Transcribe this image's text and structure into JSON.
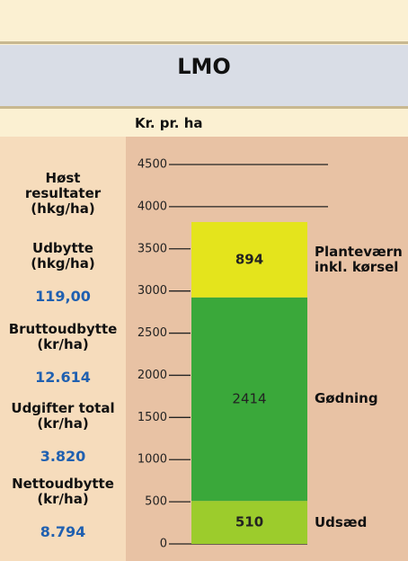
{
  "chart_data": {
    "type": "bar",
    "title": "LMO",
    "y_axis_label": "Kr. pr. ha",
    "categories": [
      null
    ],
    "series": [
      {
        "name": "Udsæd",
        "color": "#9ccc2c",
        "values": [
          510
        ]
      },
      {
        "name": "Gødning",
        "color": "#3aa83a",
        "values": [
          2414
        ]
      },
      {
        "name": "Planteværn inkl. kørsel",
        "color": "#e4e41c",
        "values": [
          894
        ]
      }
    ],
    "ylim": [
      0,
      4500
    ],
    "yticks": [
      0,
      500,
      1000,
      1500,
      2000,
      2500,
      3000,
      3500,
      4000,
      4500
    ]
  },
  "sidebar": {
    "heading": "Høst\nresultater\n(hkg/ha)",
    "items": [
      {
        "label": "Udbytte\n(hkg/ha)",
        "value": "119,00"
      },
      {
        "label": "Bruttoudbytte\n(kr/ha)",
        "value": "12.614"
      },
      {
        "label": "Udgifter total\n(kr/ha)",
        "value": "3.820"
      },
      {
        "label": "Nettoudbytte\n(kr/ha)",
        "value": "8.794"
      }
    ]
  }
}
